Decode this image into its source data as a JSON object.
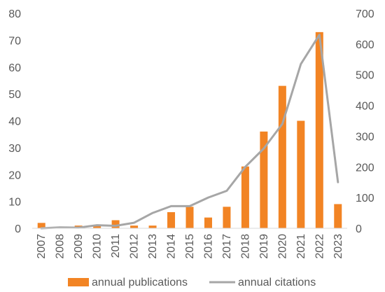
{
  "chart_data": {
    "type": "bar",
    "categories": [
      "2007",
      "2008",
      "2009",
      "2010",
      "2011",
      "2012",
      "2013",
      "2014",
      "2015",
      "2016",
      "2017",
      "2018",
      "2019",
      "2020",
      "2021",
      "2022",
      "2023"
    ],
    "series": [
      {
        "name": "annual publications",
        "type": "bar",
        "axis": "left",
        "color": "#f28424",
        "values": [
          2,
          0,
          1,
          1,
          3,
          1,
          1,
          6,
          8,
          4,
          8,
          23,
          36,
          53,
          40,
          73,
          9
        ]
      },
      {
        "name": "annual citations",
        "type": "line",
        "axis": "right",
        "color": "#a6a6a6",
        "values": [
          0,
          3,
          2,
          10,
          8,
          18,
          50,
          72,
          72,
          100,
          122,
          200,
          260,
          340,
          535,
          630,
          150
        ]
      }
    ],
    "y_left": {
      "ylim": [
        0,
        80
      ],
      "ticks": [
        "0",
        "10",
        "20",
        "30",
        "40",
        "50",
        "60",
        "70",
        "80"
      ]
    },
    "y_right": {
      "ylim": [
        0,
        700
      ],
      "ticks": [
        "0",
        "100",
        "200",
        "300",
        "400",
        "500",
        "600",
        "700"
      ]
    },
    "legend_position": "bottom",
    "grid": false
  }
}
